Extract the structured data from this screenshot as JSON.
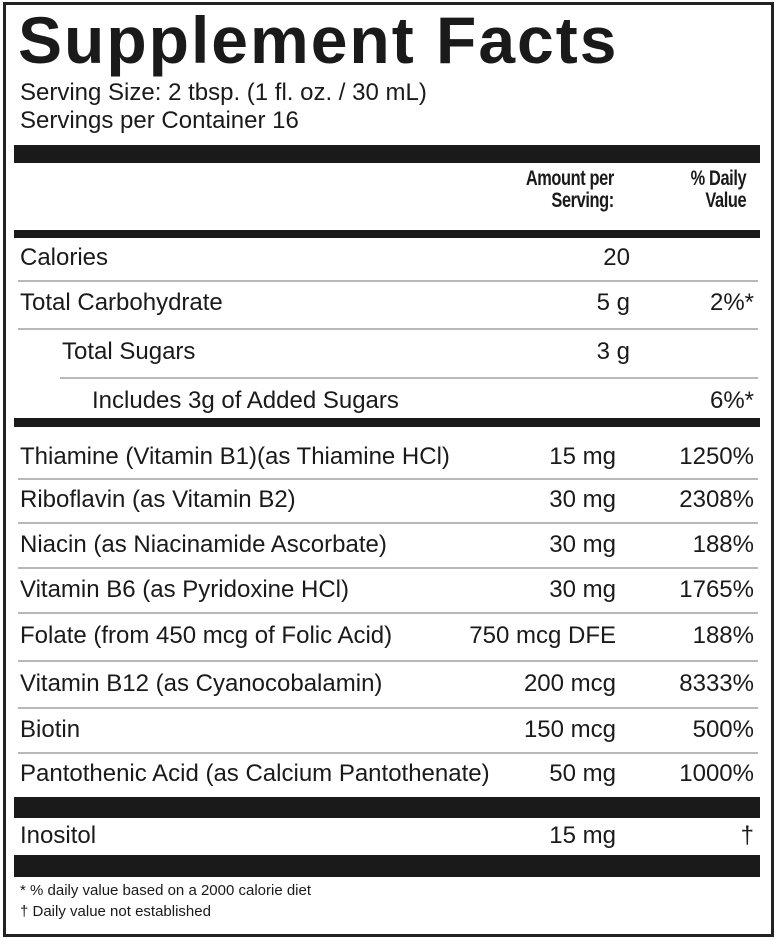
{
  "title": "Supplement Facts",
  "serving_size": "Serving Size:  2 tbsp. (1 fl. oz. / 30 mL)",
  "servings_per_container": "Servings per Container 16",
  "header": {
    "amount_line1": "Amount per",
    "amount_line2": "Serving:",
    "dv_line1": "% Daily",
    "dv_line2": "Value"
  },
  "macros": [
    {
      "name": "Calories",
      "amount": "20",
      "dv": ""
    },
    {
      "name": "Total Carbohydrate",
      "amount": "5 g",
      "dv": "2%*"
    },
    {
      "name": "Total Sugars",
      "amount": "3 g",
      "dv": ""
    },
    {
      "name": "Includes 3g of Added Sugars",
      "amount": "",
      "dv": "6%*"
    }
  ],
  "vitamins": [
    {
      "name": "Thiamine (Vitamin B1)(as Thiamine HCl)",
      "amount": "15 mg",
      "dv": "1250%"
    },
    {
      "name": "Riboflavin  (as Vitamin B2)",
      "amount": "30 mg",
      "dv": "2308%"
    },
    {
      "name": "Niacin (as Niacinamide Ascorbate)",
      "amount": "30 mg",
      "dv": "188%"
    },
    {
      "name": "Vitamin B6 (as Pyridoxine HCl)",
      "amount": "30 mg",
      "dv": "1765%"
    },
    {
      "name": "Folate (from 450 mcg of Folic Acid)",
      "amount": "750 mcg DFE",
      "dv": "188%"
    },
    {
      "name": "Vitamin B12 (as Cyanocobalamin)",
      "amount": "200 mcg",
      "dv": "8333%"
    },
    {
      "name": "Biotin",
      "amount": "150 mcg",
      "dv": "500%"
    },
    {
      "name": "Pantothenic Acid (as Calcium Pantothenate)",
      "amount": "50 mg",
      "dv": "1000%"
    }
  ],
  "other": [
    {
      "name": "Inositol",
      "amount": "15 mg",
      "dv": "†"
    }
  ],
  "footnotes": [
    "* % daily value based on a 2000 calorie diet",
    "† Daily value not established"
  ]
}
